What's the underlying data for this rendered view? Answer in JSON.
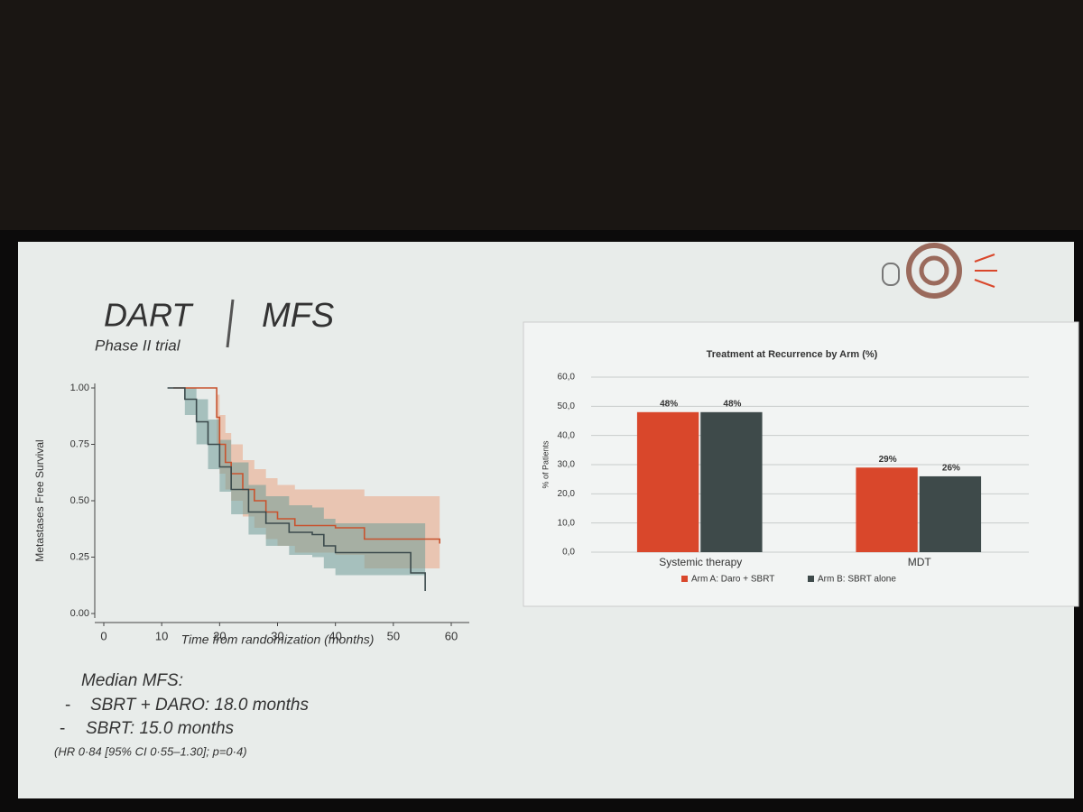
{
  "slide": {
    "title": "DART",
    "subtitle": "Phase II trial",
    "section": "MFS",
    "median_heading": "Median MFS:",
    "median_items": [
      "SBRT + DARO: 18.0 months",
      "SBRT: 15.0 months"
    ],
    "footnote": "(HR 0·84 [95% CI 0·55–1.30]; p=0·4)"
  },
  "chart_data": [
    {
      "type": "step-line",
      "x_label": "Time from randomization (months)",
      "y_label": "Metastases Free Survival",
      "xlim": [
        0,
        60
      ],
      "xticks": [
        0,
        10,
        20,
        30,
        40,
        50,
        60
      ],
      "ylim": [
        0,
        1
      ],
      "yticks": [
        {
          "value": 0,
          "label": "0.00"
        },
        {
          "value": 0.25,
          "label": "0.25"
        },
        {
          "value": 0.5,
          "label": "0.50"
        },
        {
          "value": 0.75,
          "label": "0.75"
        },
        {
          "value": 1,
          "label": "1.00"
        }
      ],
      "series": [
        {
          "color": "#c8532e",
          "band_color": "#e9a683",
          "x": [
            12,
            19,
            19.5,
            20,
            21,
            22,
            24,
            26,
            28,
            30,
            33,
            40,
            45,
            58
          ],
          "values": [
            1,
            1,
            0.87,
            0.75,
            0.67,
            0.62,
            0.55,
            0.5,
            0.45,
            0.42,
            0.39,
            0.38,
            0.33,
            0.31
          ],
          "upper": [
            1,
            1,
            0.97,
            0.88,
            0.8,
            0.75,
            0.68,
            0.64,
            0.6,
            0.57,
            0.55,
            0.55,
            0.52,
            0.52
          ],
          "lower": [
            1,
            1,
            0.75,
            0.62,
            0.55,
            0.5,
            0.43,
            0.38,
            0.33,
            0.3,
            0.27,
            0.26,
            0.2,
            0.2
          ]
        },
        {
          "color": "#3b4a4c",
          "band_color": "#6f9c98",
          "x": [
            11,
            14,
            16,
            18,
            20,
            22,
            25,
            28,
            32,
            36,
            38,
            40,
            52,
            53,
            55.5
          ],
          "values": [
            1,
            0.95,
            0.85,
            0.75,
            0.65,
            0.55,
            0.45,
            0.4,
            0.36,
            0.35,
            0.3,
            0.27,
            0.27,
            0.18,
            0.1
          ],
          "upper": [
            1,
            1,
            0.95,
            0.86,
            0.77,
            0.67,
            0.57,
            0.52,
            0.48,
            0.47,
            0.42,
            0.4,
            0.4,
            0.4,
            0.4
          ],
          "lower": [
            1,
            0.88,
            0.75,
            0.64,
            0.54,
            0.44,
            0.35,
            0.3,
            0.26,
            0.25,
            0.2,
            0.17,
            0.17,
            0.17,
            0.17
          ]
        }
      ]
    },
    {
      "type": "bar",
      "title": "Treatment at Recurrence by Arm (%)",
      "y_label": "% of Patients",
      "categories": [
        "Systemic therapy",
        "MDT"
      ],
      "ylim": [
        0,
        60
      ],
      "yticks": [
        {
          "value": 0,
          "label": "0,0"
        },
        {
          "value": 10,
          "label": "10,0"
        },
        {
          "value": 20,
          "label": "20,0"
        },
        {
          "value": 30,
          "label": "30,0"
        },
        {
          "value": 40,
          "label": "40,0"
        },
        {
          "value": 50,
          "label": "50,0"
        },
        {
          "value": 60,
          "label": "60,0"
        }
      ],
      "grid": true,
      "series": [
        {
          "name": "Arm A: Daro + SBRT",
          "color": "#d9472b",
          "values": [
            48,
            29
          ],
          "value_labels": [
            "48%",
            "29%"
          ]
        },
        {
          "name": "Arm B: SBRT alone",
          "color": "#3e4a4a",
          "values": [
            48,
            26
          ],
          "value_labels": [
            "48%",
            "26%"
          ]
        }
      ]
    }
  ]
}
